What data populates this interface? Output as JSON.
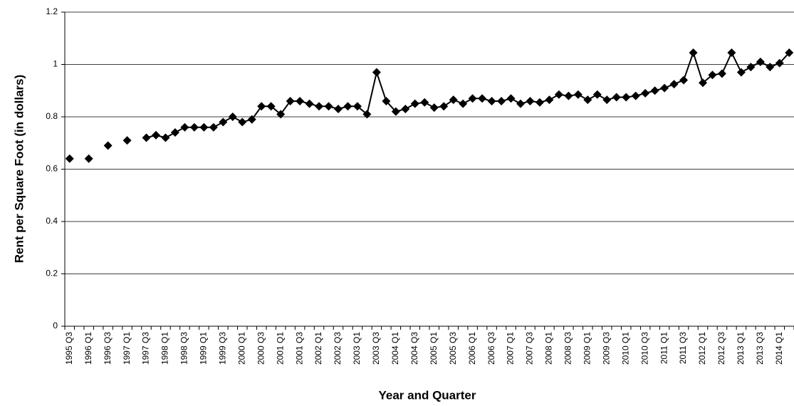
{
  "chart_data": {
    "type": "line",
    "x_label": "Year and Quarter",
    "y_label": "Rent per Square Foot (in dollars)",
    "categories": [
      "1995 Q3",
      null,
      "1996 Q1",
      null,
      "1996 Q3",
      null,
      "1997 Q1",
      null,
      "1997 Q3",
      null,
      "1998 Q1",
      null,
      "1998 Q3",
      null,
      "1999 Q1",
      null,
      "1999 Q3",
      null,
      "2000 Q1",
      null,
      "2000 Q3",
      null,
      "2001 Q1",
      null,
      "2001 Q3",
      null,
      "2002 Q1",
      null,
      "2002 Q3",
      null,
      "2003 Q1",
      null,
      "2003 Q3",
      null,
      "2004 Q1",
      null,
      "2004 Q3",
      null,
      "2005 Q1",
      null,
      "2005 Q3",
      null,
      "2006 Q1",
      null,
      "2006 Q3",
      null,
      "2007 Q1",
      null,
      "2007 Q3",
      null,
      "2008 Q1",
      null,
      "2008 Q3",
      null,
      "2009 Q1",
      null,
      "2009 Q3",
      null,
      "2010 Q1",
      null,
      "2010 Q3",
      null,
      "2011 Q1",
      null,
      "2011 Q3",
      null,
      "2012 Q1",
      null,
      "2012 Q3",
      null,
      "2013 Q1",
      null,
      "2013 Q3",
      null,
      "2014 Q1",
      null
    ],
    "series": [
      {
        "color": "#000000",
        "values": [
          0.64,
          null,
          0.64,
          null,
          0.69,
          null,
          0.71,
          null,
          0.72,
          0.73,
          0.72,
          0.74,
          0.76,
          0.76,
          0.76,
          0.76,
          0.78,
          0.8,
          0.78,
          0.79,
          0.84,
          0.84,
          0.81,
          0.86,
          0.86,
          0.85,
          0.84,
          0.84,
          0.83,
          0.84,
          0.84,
          0.81,
          0.97,
          0.86,
          0.82,
          0.83,
          0.85,
          0.855,
          0.835,
          0.84,
          0.865,
          0.85,
          0.87,
          0.87,
          0.86,
          0.86,
          0.87,
          0.85,
          0.86,
          0.855,
          0.865,
          0.885,
          0.88,
          0.885,
          0.865,
          0.885,
          0.865,
          0.875,
          0.875,
          0.88,
          0.89,
          0.9,
          0.91,
          0.925,
          0.94,
          1.045,
          0.93,
          0.96,
          0.965,
          1.045,
          0.97,
          0.99,
          1.01,
          0.99,
          1.005,
          1.045
        ]
      }
    ],
    "ylim": [
      0,
      1.2
    ],
    "yticks": [
      0,
      0.2,
      0.4,
      0.6,
      0.8,
      1,
      1.2
    ],
    "grid": true
  }
}
